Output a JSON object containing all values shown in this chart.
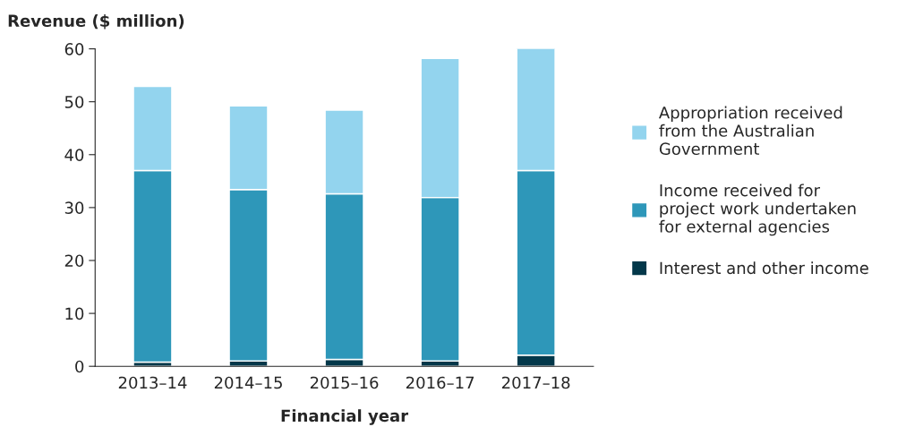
{
  "chart_data": {
    "type": "bar",
    "stacked": true,
    "ylabel": "Revenue ($ million)",
    "xlabel": "Financial year",
    "categories": [
      "2013–14",
      "2014–15",
      "2015–16",
      "2016–17",
      "2017–18"
    ],
    "series": [
      {
        "name": "Interest and other income",
        "color": "#03384a",
        "values": [
          0.8,
          1.0,
          1.3,
          1.0,
          2.1
        ]
      },
      {
        "name": "Income received for project work undertaken for external agencies",
        "color": "#2e97b9",
        "values": [
          36.2,
          32.4,
          31.3,
          30.9,
          34.9
        ]
      },
      {
        "name": "Appropriation received from the Australian Government",
        "color": "#93d4ee",
        "values": [
          15.9,
          15.8,
          15.8,
          26.3,
          23.1
        ]
      }
    ],
    "ylim": [
      0,
      60
    ],
    "yticks": [
      0,
      10,
      20,
      30,
      40,
      50,
      60
    ],
    "grid": false,
    "legend": "right"
  }
}
